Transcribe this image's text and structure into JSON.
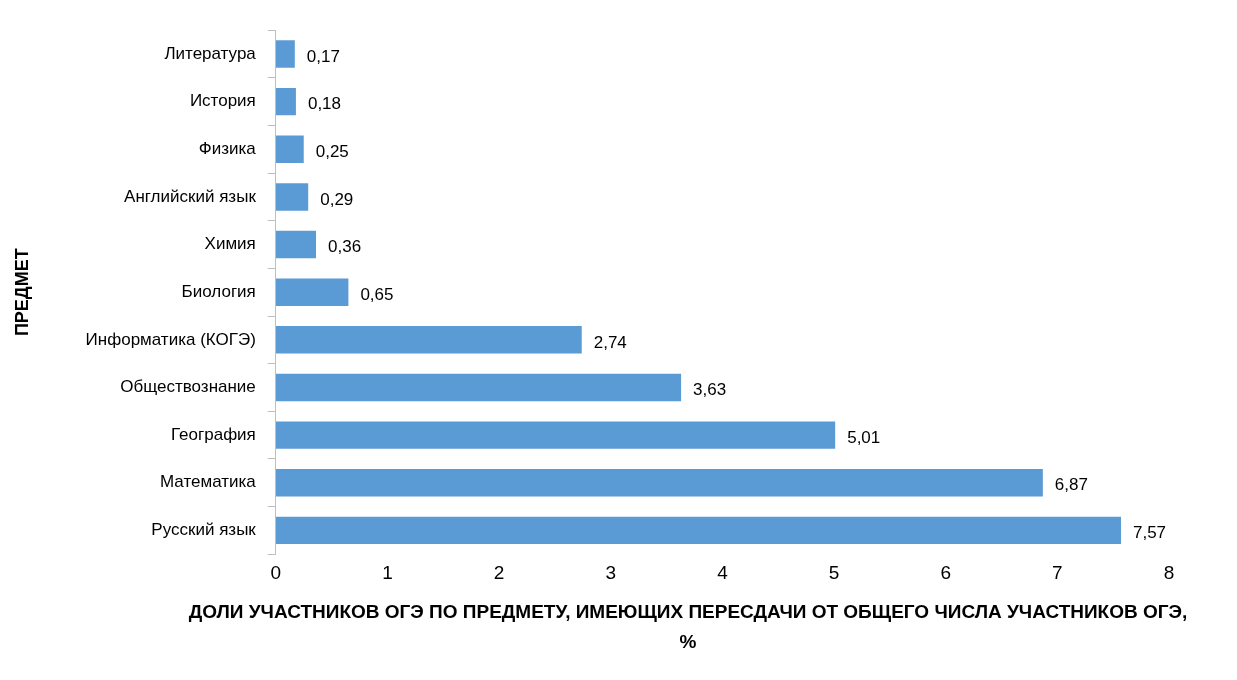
{
  "chart_data": {
    "type": "bar",
    "orientation": "horizontal",
    "xlabel": "ДОЛИ УЧАСТНИКОВ ОГЭ ПО ПРЕДМЕТУ, ИМЕЮЩИХ ПЕРЕСДАЧИ ОТ ОБЩЕГО ЧИСЛА УЧАСТНИКОВ ОГЭ, %",
    "ylabel": "ПРЕДМЕТ",
    "categories": [
      "Литература",
      "История",
      "Физика",
      "Английский язык",
      "Химия",
      "Биология",
      "Информатика (КОГЭ)",
      "Обществознание",
      "География",
      "Математика",
      "Русский язык"
    ],
    "values": [
      0.17,
      0.18,
      0.25,
      0.29,
      0.36,
      0.65,
      2.74,
      3.63,
      5.01,
      6.87,
      7.57
    ],
    "value_labels": [
      "0,17",
      "0,18",
      "0,25",
      "0,29",
      "0,36",
      "0,65",
      "2,74",
      "3,63",
      "5,01",
      "6,87",
      "7,57"
    ],
    "color": "#5b9bd5",
    "xlim": [
      0,
      8
    ],
    "xticks": [
      0,
      1,
      2,
      3,
      4,
      5,
      6,
      7,
      8
    ],
    "grid": false,
    "legend": false
  }
}
